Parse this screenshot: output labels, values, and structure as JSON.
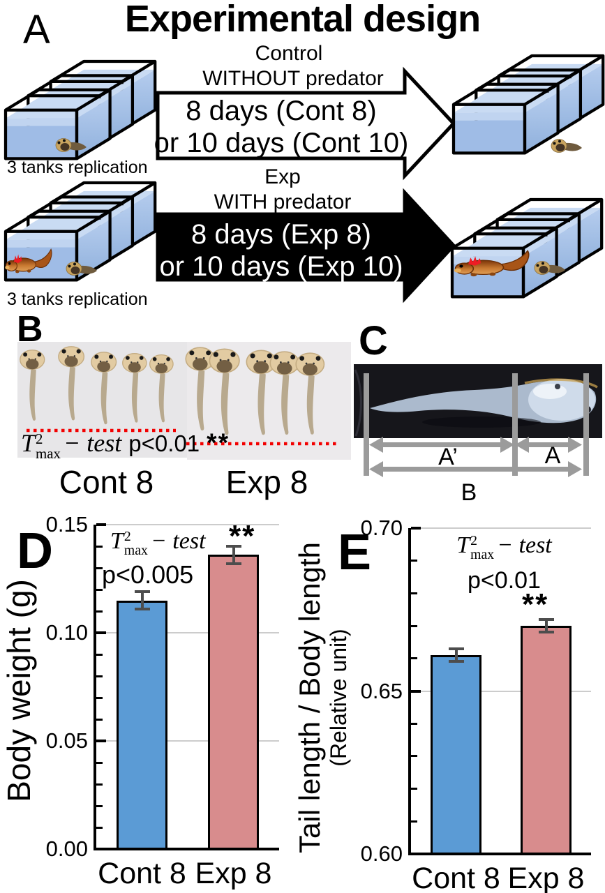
{
  "title": "Experimental design",
  "colors": {
    "bar_blue": "#5b9bd5",
    "bar_pink": "#d88c8d",
    "water_light": "#c9dbf3",
    "water_mid": "#9fbce6",
    "newt_orange": "#c87830",
    "gill_red": "#ee1c24",
    "dotted_line_red": "#f20000",
    "measure_gray": "#9b9b9b",
    "grid_gray": "#cccccc",
    "error_bar_gray": "#4d4d4d"
  },
  "panel_a": {
    "label": "A",
    "control_title": "Control",
    "control_subtitle": "WITHOUT predator",
    "control_arrow_line1": "8 days (Cont 8)",
    "control_arrow_line2": "or 10 days (Cont 10)",
    "exp_title": "Exp",
    "exp_subtitle": "WITH predator",
    "exp_arrow_line1": "8 days (Exp 8)",
    "exp_arrow_line2": "or 10 days (Exp 10)",
    "replication_label_top": "3 tanks replication",
    "replication_label_bottom": "3 tanks replication"
  },
  "panel_b": {
    "label": "B",
    "stat": {
      "t": "T",
      "sup": "2",
      "sub": "max",
      "rest": "− test",
      "p": "p<0.01",
      "stars": "**"
    },
    "group_left": "Cont 8",
    "group_right": "Exp 8"
  },
  "panel_c": {
    "label": "C",
    "tail_measure": "A’",
    "body_measure": "A",
    "total_measure": "B"
  },
  "panel_d": {
    "label": "D"
  },
  "panel_e": {
    "label": "E"
  },
  "chart_data": [
    {
      "panel": "D",
      "type": "bar",
      "categories": [
        "Cont 8",
        "Exp 8"
      ],
      "values": [
        0.115,
        0.136
      ],
      "errors": [
        0.004,
        0.004
      ],
      "bar_colors": [
        "#5b9bd5",
        "#d88c8d"
      ],
      "ylabel": "Body weight (g)",
      "ylim": [
        0,
        0.15
      ],
      "yticks": [
        0,
        0.05,
        0.1,
        0.15
      ],
      "ytick_labels": [
        "0.00",
        "0.05",
        "0.10",
        "0.15"
      ],
      "minor_tick_step": 0.01,
      "grid": true,
      "legend": "none",
      "stat": {
        "t": "T",
        "sup": "2",
        "sub": "max",
        "rest": "− test"
      },
      "p_value": "p<0.005",
      "significance": "**"
    },
    {
      "panel": "E",
      "type": "bar",
      "categories": [
        "Cont 8",
        "Exp 8"
      ],
      "values": [
        0.661,
        0.67
      ],
      "errors": [
        0.002,
        0.002
      ],
      "bar_colors": [
        "#5b9bd5",
        "#d88c8d"
      ],
      "ylabel": "Tail length / Body length",
      "ylabel2": "(Relative unit)",
      "ylim": [
        0.6,
        0.7
      ],
      "yticks": [
        0.6,
        0.65,
        0.7
      ],
      "ytick_labels": [
        "0.60",
        "0.65",
        "0.70"
      ],
      "minor_tick_step": 0.01,
      "grid": true,
      "legend": "none",
      "stat": {
        "t": "T",
        "sup": "2",
        "sub": "max",
        "rest": "− test"
      },
      "p_value": "p<0.01",
      "significance": "**"
    }
  ]
}
